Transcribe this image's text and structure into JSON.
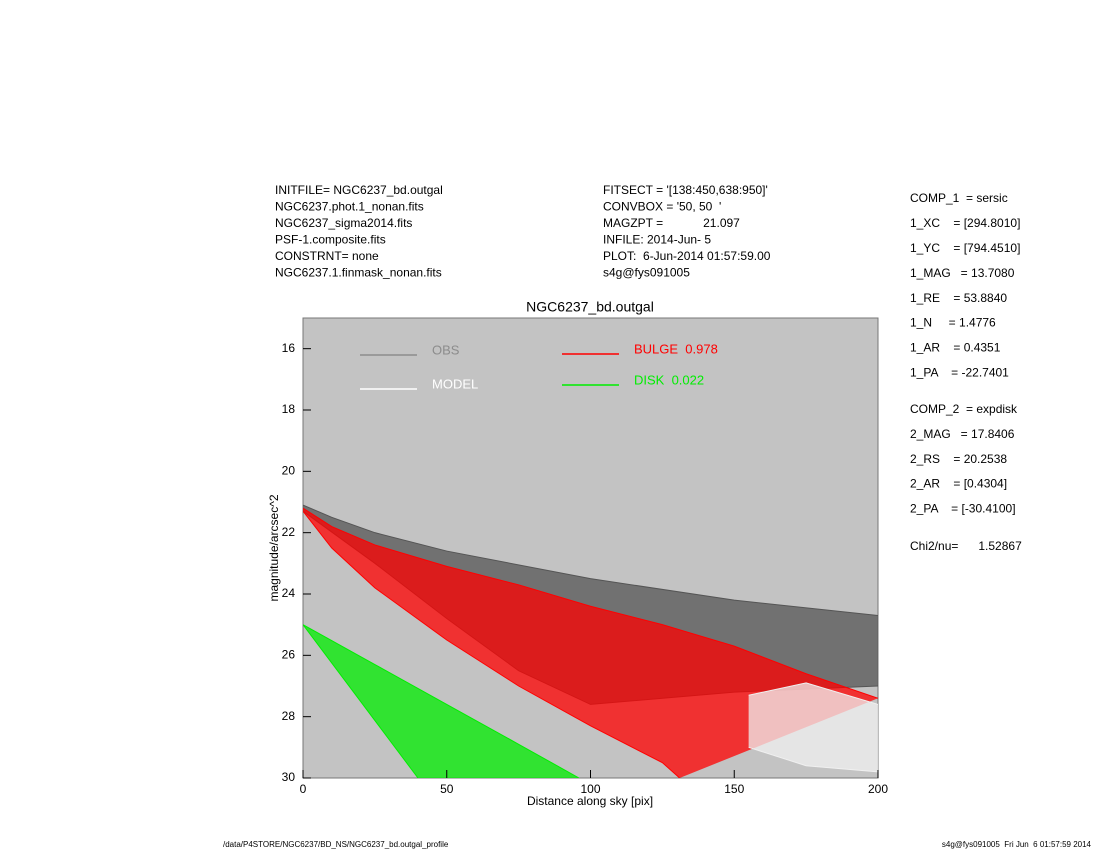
{
  "header_left": [
    "INITFILE= NGC6237_bd.outgal",
    "NGC6237.phot.1_nonan.fits",
    "NGC6237_sigma2014.fits",
    "PSF-1.composite.fits",
    "CONSTRNT= none",
    "NGC6237.1.finmask_nonan.fits"
  ],
  "header_middle": [
    "FITSECT = '[138:450,638:950]'",
    "CONVBOX = '50, 50  '",
    "MAGZPT =            21.097",
    "INFILE: 2014-Jun- 5",
    "PLOT:  6-Jun-2014 01:57:59.00",
    "s4g@fys091005"
  ],
  "params_comp1": [
    "COMP_1  = sersic",
    "1_XC    = [294.8010]",
    "1_YC    = [794.4510]",
    "1_MAG   = 13.7080",
    "1_RE    = 53.8840",
    "1_N     = 1.4776",
    "1_AR    = 0.4351",
    "1_PA    = -22.7401"
  ],
  "params_comp2": [
    "COMP_2  = expdisk",
    "2_MAG   = 17.8406",
    "2_RS    = 20.2538",
    "2_AR    = [0.4304]",
    "2_PA    = [-30.4100]"
  ],
  "chi2": "Chi2/nu=      1.52867",
  "footer_left": "/data/P4STORE/NGC6237/BD_NS/NGC6237_bd.outgal_profile",
  "footer_right": "s4g@fys091005  Fri Jun  6 01:57:59 2014",
  "chart_data": {
    "type": "band",
    "title": "NGC6237_bd.outgal",
    "x_label": "Distance along sky [pix]",
    "y_label": "magnitude/arcsec^2",
    "xlim": [
      0,
      200
    ],
    "ylim": [
      15,
      30
    ],
    "y_inverted": true,
    "xticks": [
      0,
      50,
      100,
      150,
      200
    ],
    "yticks": [
      16,
      18,
      20,
      22,
      24,
      26,
      28,
      30
    ],
    "background": "#c3c3c3",
    "series": [
      {
        "name": "OBS",
        "color": "#555555",
        "legend_color": "#8c8c8c",
        "upper": {
          "x": [
            0,
            10,
            25,
            50,
            100,
            150,
            200
          ],
          "y": [
            21.1,
            21.5,
            22.0,
            22.6,
            23.5,
            24.2,
            24.7
          ]
        },
        "lower": {
          "x": [
            0,
            25,
            50,
            75,
            100,
            150,
            200
          ],
          "y": [
            21.3,
            23.0,
            24.8,
            26.5,
            27.6,
            27.2,
            27.0
          ]
        }
      },
      {
        "name": "BULGE  0.978",
        "color": "#ff0000",
        "legend_color": "#ff0000",
        "upper": {
          "x": [
            0,
            10,
            25,
            50,
            75,
            100,
            125,
            150,
            175,
            200
          ],
          "y": [
            21.2,
            21.8,
            22.4,
            23.1,
            23.7,
            24.4,
            25.0,
            25.7,
            26.6,
            27.4
          ]
        },
        "lower": {
          "x": [
            0,
            10,
            25,
            50,
            75,
            100,
            125,
            131
          ],
          "y": [
            21.3,
            22.5,
            23.8,
            25.5,
            27.0,
            28.3,
            29.5,
            30
          ]
        }
      },
      {
        "name": "MODEL",
        "color": "#f0f0f0",
        "legend_color": "#ffffff",
        "upper": {
          "x": [
            155,
            175,
            200
          ],
          "y": [
            27.3,
            26.9,
            27.6
          ]
        },
        "lower": {
          "x": [
            155,
            175,
            200
          ],
          "y": [
            29.0,
            29.6,
            29.8
          ]
        }
      },
      {
        "name": "DISK  0.022",
        "color": "#00ee00",
        "legend_color": "#00ee00",
        "upper": {
          "x": [
            0,
            25,
            50,
            75,
            96
          ],
          "y": [
            25.0,
            26.3,
            27.6,
            28.9,
            30
          ]
        },
        "lower": {
          "x": [
            0,
            20,
            40
          ],
          "y": [
            25.0,
            27.5,
            30
          ]
        }
      }
    ]
  }
}
